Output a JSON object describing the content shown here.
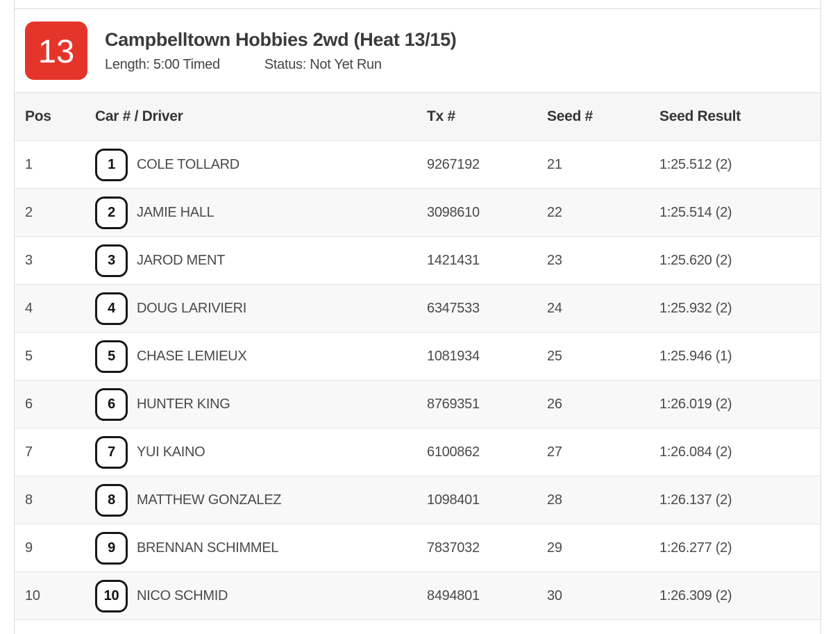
{
  "colors": {
    "accent_red": "#e5352a",
    "header_bg": "#f6f6f6",
    "zebra_bg": "#f8f8f8",
    "border": "#d9d9d9"
  },
  "heat": {
    "number": "13",
    "title": "Campbelltown Hobbies 2wd (Heat 13/15)",
    "length_label": "Length: 5:00 Timed",
    "status_label": "Status: Not Yet Run"
  },
  "table": {
    "columns": [
      "Pos",
      "Car # / Driver",
      "Tx #",
      "Seed #",
      "Seed Result"
    ],
    "rows": [
      {
        "pos": "1",
        "car": "1",
        "driver": "COLE TOLLARD",
        "tx": "9267192",
        "seed": "21",
        "result": "1:25.512 (2)"
      },
      {
        "pos": "2",
        "car": "2",
        "driver": "JAMIE HALL",
        "tx": "3098610",
        "seed": "22",
        "result": "1:25.514 (2)"
      },
      {
        "pos": "3",
        "car": "3",
        "driver": "JAROD MENT",
        "tx": "1421431",
        "seed": "23",
        "result": "1:25.620 (2)"
      },
      {
        "pos": "4",
        "car": "4",
        "driver": "DOUG LARIVIERI",
        "tx": "6347533",
        "seed": "24",
        "result": "1:25.932 (2)"
      },
      {
        "pos": "5",
        "car": "5",
        "driver": "CHASE LEMIEUX",
        "tx": "1081934",
        "seed": "25",
        "result": "1:25.946 (1)"
      },
      {
        "pos": "6",
        "car": "6",
        "driver": "HUNTER KING",
        "tx": "8769351",
        "seed": "26",
        "result": "1:26.019 (2)"
      },
      {
        "pos": "7",
        "car": "7",
        "driver": "YUI KAINO",
        "tx": "6100862",
        "seed": "27",
        "result": "1:26.084 (2)"
      },
      {
        "pos": "8",
        "car": "8",
        "driver": "MATTHEW GONZALEZ",
        "tx": "1098401",
        "seed": "28",
        "result": "1:26.137 (2)"
      },
      {
        "pos": "9",
        "car": "9",
        "driver": "BRENNAN SCHIMMEL",
        "tx": "7837032",
        "seed": "29",
        "result": "1:26.277 (2)"
      },
      {
        "pos": "10",
        "car": "10",
        "driver": "NICO SCHMID",
        "tx": "8494801",
        "seed": "30",
        "result": "1:26.309 (2)"
      }
    ]
  }
}
